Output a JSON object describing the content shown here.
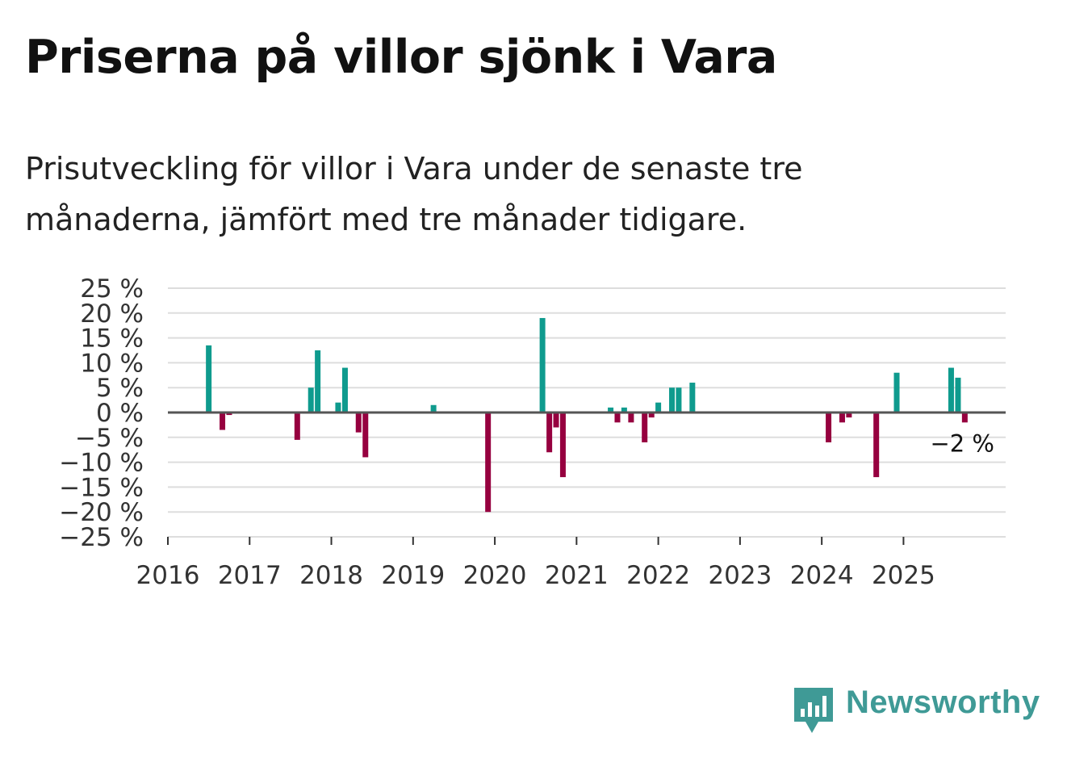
{
  "title": "Priserna på villor sjönk i Vara",
  "subtitle": "Prisutveckling för villor i Vara under de senaste tre månaderna, jämfört med tre månader tidigare.",
  "brand": {
    "name": "Newsworthy",
    "color": "#3f9a96",
    "icon": "newsworthy-logo-icon"
  },
  "colors": {
    "positive": "#0f9b8e",
    "negative": "#96003f",
    "grid": "#dddddd",
    "zero": "#555555",
    "text": "#333333"
  },
  "chart_data": {
    "type": "bar",
    "title": "Priserna på villor sjönk i Vara",
    "xlabel": "",
    "ylabel": "",
    "ylim": [
      -25,
      25
    ],
    "yticks": [
      25,
      20,
      15,
      10,
      5,
      0,
      -5,
      -10,
      -15,
      -20,
      -25
    ],
    "ytick_labels": [
      "25 %",
      "20 %",
      "15 %",
      "10 %",
      "5 %",
      "0 %",
      "−5 %",
      "−10 %",
      "−15 %",
      "−20 %",
      "−25 %"
    ],
    "xlim": [
      2016.0,
      2026.25
    ],
    "xticks": [
      2016,
      2017,
      2018,
      2019,
      2020,
      2021,
      2022,
      2023,
      2024,
      2025
    ],
    "xtick_labels": [
      "2016",
      "2017",
      "2018",
      "2019",
      "2020",
      "2021",
      "2022",
      "2023",
      "2024",
      "2025"
    ],
    "last_value_label": "−2 %",
    "grid": true,
    "points": [
      {
        "x": 2016.5,
        "y": 13.5
      },
      {
        "x": 2016.667,
        "y": -3.5
      },
      {
        "x": 2016.75,
        "y": -0.5
      },
      {
        "x": 2017.583,
        "y": -5.5
      },
      {
        "x": 2017.75,
        "y": 5
      },
      {
        "x": 2017.833,
        "y": 12.5
      },
      {
        "x": 2018.083,
        "y": 2
      },
      {
        "x": 2018.167,
        "y": 9
      },
      {
        "x": 2018.333,
        "y": -4
      },
      {
        "x": 2018.417,
        "y": -9
      },
      {
        "x": 2019.25,
        "y": 1.5
      },
      {
        "x": 2019.917,
        "y": -20
      },
      {
        "x": 2020.583,
        "y": 19
      },
      {
        "x": 2020.667,
        "y": -8
      },
      {
        "x": 2020.75,
        "y": -3
      },
      {
        "x": 2020.833,
        "y": -13
      },
      {
        "x": 2021.417,
        "y": 1
      },
      {
        "x": 2021.5,
        "y": -2
      },
      {
        "x": 2021.583,
        "y": 1
      },
      {
        "x": 2021.667,
        "y": -2
      },
      {
        "x": 2021.833,
        "y": -6
      },
      {
        "x": 2021.917,
        "y": -1
      },
      {
        "x": 2022.0,
        "y": 2
      },
      {
        "x": 2022.167,
        "y": 5
      },
      {
        "x": 2022.25,
        "y": 5
      },
      {
        "x": 2022.417,
        "y": 6
      },
      {
        "x": 2024.083,
        "y": -6
      },
      {
        "x": 2024.25,
        "y": -2
      },
      {
        "x": 2024.333,
        "y": -1
      },
      {
        "x": 2024.667,
        "y": -13
      },
      {
        "x": 2024.917,
        "y": 8
      },
      {
        "x": 2025.583,
        "y": 9
      },
      {
        "x": 2025.667,
        "y": 7
      },
      {
        "x": 2025.75,
        "y": -2
      }
    ]
  }
}
